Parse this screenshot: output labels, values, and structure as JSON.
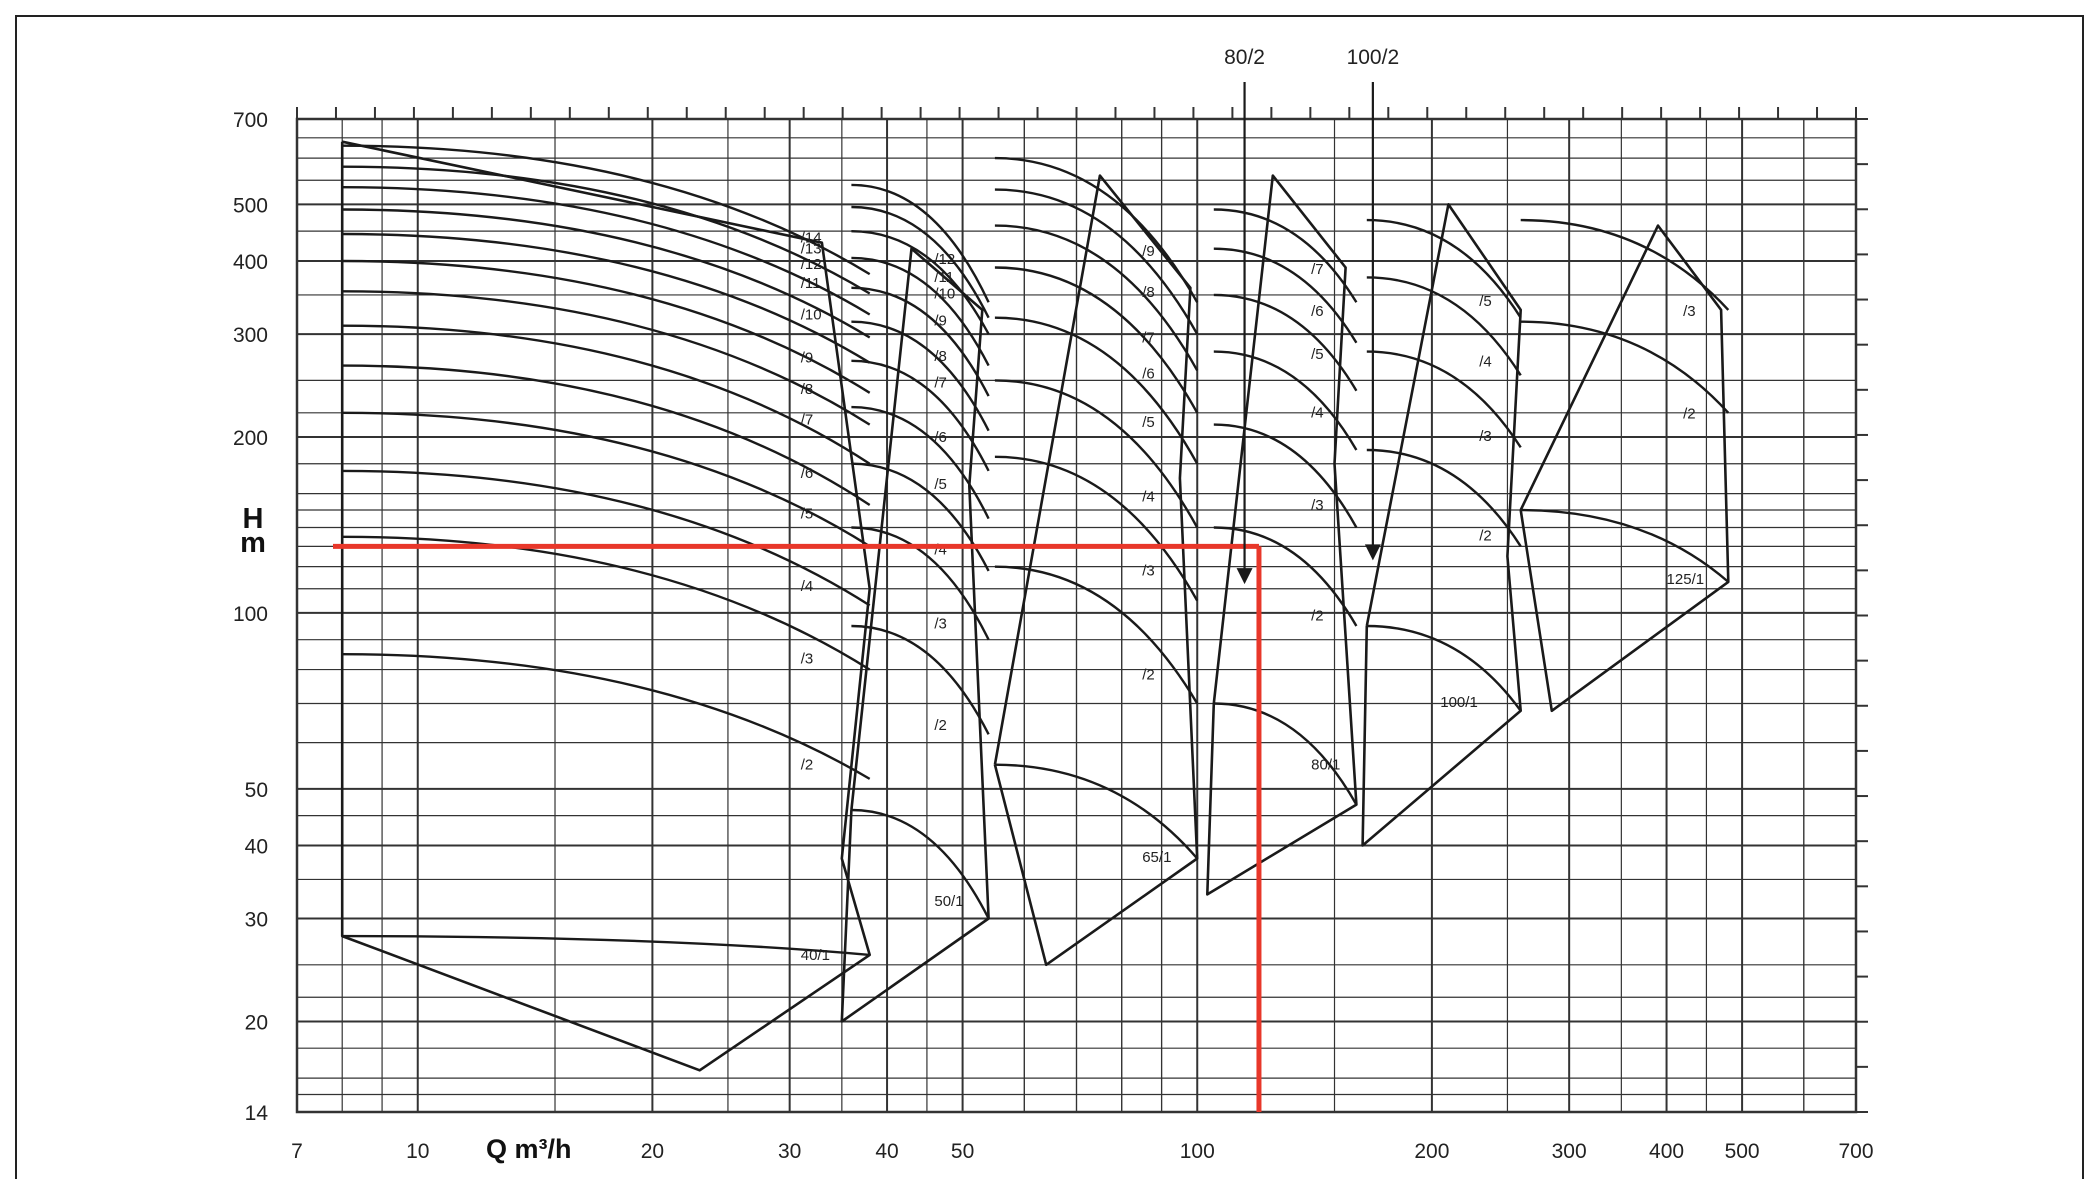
{
  "chart_data": {
    "type": "line",
    "title": "",
    "xlabel": "Q m³/h",
    "ylabel_top": "H",
    "ylabel_bottom": "m",
    "x_scale": "log",
    "y_scale": "log",
    "xlim": [
      7,
      700
    ],
    "ylim": [
      14,
      700
    ],
    "x_ticks": [
      "7",
      "10",
      "20",
      "30",
      "40",
      "50",
      "100",
      "200",
      "300",
      "400",
      "500",
      "700"
    ],
    "y_ticks": [
      "700",
      "500",
      "400",
      "300",
      "200",
      "100",
      "50",
      "40",
      "30",
      "20",
      "14"
    ],
    "grid": true,
    "colors": {
      "curves": "#1a1a1a",
      "grid": "#333333",
      "selection": "#e8372a",
      "background": "#ffffff"
    },
    "selection_point": {
      "q": 120,
      "h": 130
    },
    "callouts": [
      {
        "label": "80/2",
        "q": 115,
        "h_top": 660,
        "h_bottom": 112
      },
      {
        "label": "100/2",
        "q": 168,
        "h_top": 660,
        "h_bottom": 123
      }
    ],
    "families": [
      {
        "name": "40",
        "envelope": [
          [
            8,
            640
          ],
          [
            8,
            28
          ],
          [
            23,
            16.5
          ],
          [
            38,
            26
          ],
          [
            35,
            38
          ],
          [
            38,
            110
          ],
          [
            33,
            430
          ],
          [
            8,
            640
          ]
        ],
        "curves": [
          {
            "label": "40/1",
            "q0": 8,
            "h0": 28,
            "q1": 38,
            "h1": 26,
            "lq": 31,
            "lh": 25.5
          },
          {
            "label": "/2",
            "q0": 8,
            "h0": 85,
            "q1": 38,
            "h1": 52,
            "lq": 31,
            "lh": 54
          },
          {
            "label": "/3",
            "q0": 8,
            "h0": 135,
            "q1": 38,
            "h1": 80,
            "lq": 31,
            "lh": 82
          },
          {
            "label": "/4",
            "q0": 8,
            "h0": 175,
            "q1": 38,
            "h1": 103,
            "lq": 31,
            "lh": 109
          },
          {
            "label": "/5",
            "q0": 8,
            "h0": 220,
            "q1": 38,
            "h1": 130,
            "lq": 31,
            "lh": 145
          },
          {
            "label": "/6",
            "q0": 8,
            "h0": 265,
            "q1": 38,
            "h1": 153,
            "lq": 31,
            "lh": 170
          },
          {
            "label": "/7",
            "q0": 8,
            "h0": 310,
            "q1": 38,
            "h1": 180,
            "lq": 31,
            "lh": 210
          },
          {
            "label": "/8",
            "q0": 8,
            "h0": 355,
            "q1": 38,
            "h1": 210,
            "lq": 31,
            "lh": 237
          },
          {
            "label": "/9",
            "q0": 8,
            "h0": 400,
            "q1": 38,
            "h1": 238,
            "lq": 31,
            "lh": 268
          },
          {
            "label": "/10",
            "q0": 8,
            "h0": 445,
            "q1": 38,
            "h1": 268,
            "lq": 31,
            "lh": 318
          },
          {
            "label": "/11",
            "q0": 8,
            "h0": 490,
            "q1": 38,
            "h1": 296,
            "lq": 31,
            "lh": 360
          },
          {
            "label": "/12",
            "q0": 8,
            "h0": 535,
            "q1": 38,
            "h1": 324,
            "lq": 31,
            "lh": 388
          },
          {
            "label": "/13",
            "q0": 8,
            "h0": 580,
            "q1": 38,
            "h1": 352,
            "lq": 31,
            "lh": 412
          },
          {
            "label": "/14",
            "q0": 8,
            "h0": 630,
            "q1": 38,
            "h1": 380,
            "lq": 31,
            "lh": 430
          }
        ]
      },
      {
        "name": "50",
        "envelope": [
          [
            36,
            46
          ],
          [
            35,
            20
          ],
          [
            54,
            30
          ],
          [
            51,
            165
          ],
          [
            53,
            330
          ],
          [
            43,
            420
          ],
          [
            36,
            46
          ]
        ],
        "curves": [
          {
            "label": "50/1",
            "q0": 36,
            "h0": 46,
            "q1": 54,
            "h1": 30,
            "lq": 46,
            "lh": 31.5
          },
          {
            "label": "/2",
            "q0": 36,
            "h0": 95,
            "q1": 54,
            "h1": 62,
            "lq": 46,
            "lh": 63
          },
          {
            "label": "/3",
            "q0": 36,
            "h0": 140,
            "q1": 54,
            "h1": 90,
            "lq": 46,
            "lh": 94
          },
          {
            "label": "/4",
            "q0": 36,
            "h0": 180,
            "q1": 54,
            "h1": 118,
            "lq": 46,
            "lh": 126
          },
          {
            "label": "/5",
            "q0": 36,
            "h0": 225,
            "q1": 54,
            "h1": 145,
            "lq": 46,
            "lh": 163
          },
          {
            "label": "/6",
            "q0": 36,
            "h0": 270,
            "q1": 54,
            "h1": 175,
            "lq": 46,
            "lh": 196
          },
          {
            "label": "/7",
            "q0": 36,
            "h0": 315,
            "q1": 54,
            "h1": 205,
            "lq": 46,
            "lh": 243
          },
          {
            "label": "/8",
            "q0": 36,
            "h0": 360,
            "q1": 54,
            "h1": 235,
            "lq": 46,
            "lh": 270
          },
          {
            "label": "/9",
            "q0": 36,
            "h0": 405,
            "q1": 54,
            "h1": 265,
            "lq": 46,
            "lh": 310
          },
          {
            "label": "/10",
            "q0": 36,
            "h0": 450,
            "q1": 54,
            "h1": 300,
            "lq": 46,
            "lh": 345
          },
          {
            "label": "/11",
            "q0": 36,
            "h0": 495,
            "q1": 54,
            "h1": 320,
            "lq": 46,
            "lh": 368
          },
          {
            "label": "/12",
            "q0": 36,
            "h0": 540,
            "q1": 54,
            "h1": 340,
            "lq": 46,
            "lh": 395
          }
        ]
      },
      {
        "name": "65",
        "envelope": [
          [
            55,
            55
          ],
          [
            64,
            25
          ],
          [
            100,
            38
          ],
          [
            95,
            170
          ],
          [
            98,
            360
          ],
          [
            75,
            560
          ],
          [
            55,
            55
          ]
        ],
        "curves": [
          {
            "label": "65/1",
            "q0": 55,
            "h0": 55,
            "q1": 100,
            "h1": 38,
            "lq": 85,
            "lh": 37.5
          },
          {
            "label": "/2",
            "q0": 55,
            "h0": 120,
            "q1": 100,
            "h1": 70,
            "lq": 85,
            "lh": 77
          },
          {
            "label": "/3",
            "q0": 55,
            "h0": 185,
            "q1": 100,
            "h1": 105,
            "lq": 85,
            "lh": 116
          },
          {
            "label": "/4",
            "q0": 55,
            "h0": 250,
            "q1": 100,
            "h1": 140,
            "lq": 85,
            "lh": 155
          },
          {
            "label": "/5",
            "q0": 55,
            "h0": 320,
            "q1": 100,
            "h1": 180,
            "lq": 85,
            "lh": 208
          },
          {
            "label": "/6",
            "q0": 55,
            "h0": 390,
            "q1": 100,
            "h1": 220,
            "lq": 85,
            "lh": 252
          },
          {
            "label": "/7",
            "q0": 55,
            "h0": 460,
            "q1": 100,
            "h1": 260,
            "lq": 85,
            "lh": 290
          },
          {
            "label": "/8",
            "q0": 55,
            "h0": 530,
            "q1": 100,
            "h1": 300,
            "lq": 85,
            "lh": 347
          },
          {
            "label": "/9",
            "q0": 55,
            "h0": 600,
            "q1": 100,
            "h1": 340,
            "lq": 85,
            "lh": 408
          }
        ]
      },
      {
        "name": "80",
        "envelope": [
          [
            105,
            70
          ],
          [
            103,
            33
          ],
          [
            160,
            47
          ],
          [
            150,
            180
          ],
          [
            155,
            390
          ],
          [
            125,
            560
          ],
          [
            105,
            70
          ]
        ],
        "curves": [
          {
            "label": "80/1",
            "q0": 105,
            "h0": 70,
            "q1": 160,
            "h1": 47,
            "lq": 140,
            "lh": 54
          },
          {
            "label": "/2",
            "q0": 105,
            "h0": 140,
            "q1": 160,
            "h1": 95,
            "lq": 140,
            "lh": 97
          },
          {
            "label": "/3",
            "q0": 105,
            "h0": 210,
            "q1": 160,
            "h1": 140,
            "lq": 140,
            "lh": 150
          },
          {
            "label": "/4",
            "q0": 105,
            "h0": 280,
            "q1": 160,
            "h1": 190,
            "lq": 140,
            "lh": 216
          },
          {
            "label": "/5",
            "q0": 105,
            "h0": 350,
            "q1": 160,
            "h1": 240,
            "lq": 140,
            "lh": 272
          },
          {
            "label": "/6",
            "q0": 105,
            "h0": 420,
            "q1": 160,
            "h1": 290,
            "lq": 140,
            "lh": 322
          },
          {
            "label": "/7",
            "q0": 105,
            "h0": 490,
            "q1": 160,
            "h1": 340,
            "lq": 140,
            "lh": 380
          }
        ]
      },
      {
        "name": "100",
        "envelope": [
          [
            165,
            95
          ],
          [
            163,
            40
          ],
          [
            260,
            68
          ],
          [
            250,
            125
          ],
          [
            260,
            330
          ],
          [
            210,
            500
          ],
          [
            165,
            95
          ]
        ],
        "curves": [
          {
            "label": "100/1",
            "q0": 165,
            "h0": 95,
            "q1": 260,
            "h1": 68,
            "lq": 205,
            "lh": 69
          },
          {
            "label": "/2",
            "q0": 165,
            "h0": 190,
            "q1": 260,
            "h1": 130,
            "lq": 230,
            "lh": 133
          },
          {
            "label": "/3",
            "q0": 165,
            "h0": 280,
            "q1": 260,
            "h1": 192,
            "lq": 230,
            "lh": 197
          },
          {
            "label": "/4",
            "q0": 165,
            "h0": 375,
            "q1": 260,
            "h1": 255,
            "lq": 230,
            "lh": 264
          },
          {
            "label": "/5",
            "q0": 165,
            "h0": 470,
            "q1": 260,
            "h1": 320,
            "lq": 230,
            "lh": 335
          }
        ]
      },
      {
        "name": "125",
        "envelope": [
          [
            260,
            150
          ],
          [
            285,
            68
          ],
          [
            480,
            113
          ],
          [
            470,
            330
          ],
          [
            390,
            460
          ],
          [
            260,
            150
          ]
        ],
        "curves": [
          {
            "label": "125/1",
            "q0": 260,
            "h0": 150,
            "q1": 480,
            "h1": 113,
            "lq": 400,
            "lh": 112
          },
          {
            "label": "/2",
            "q0": 260,
            "h0": 315,
            "q1": 480,
            "h1": 220,
            "lq": 420,
            "lh": 215
          },
          {
            "label": "/3",
            "q0": 260,
            "h0": 470,
            "q1": 480,
            "h1": 330,
            "lq": 420,
            "lh": 322
          }
        ]
      }
    ]
  }
}
